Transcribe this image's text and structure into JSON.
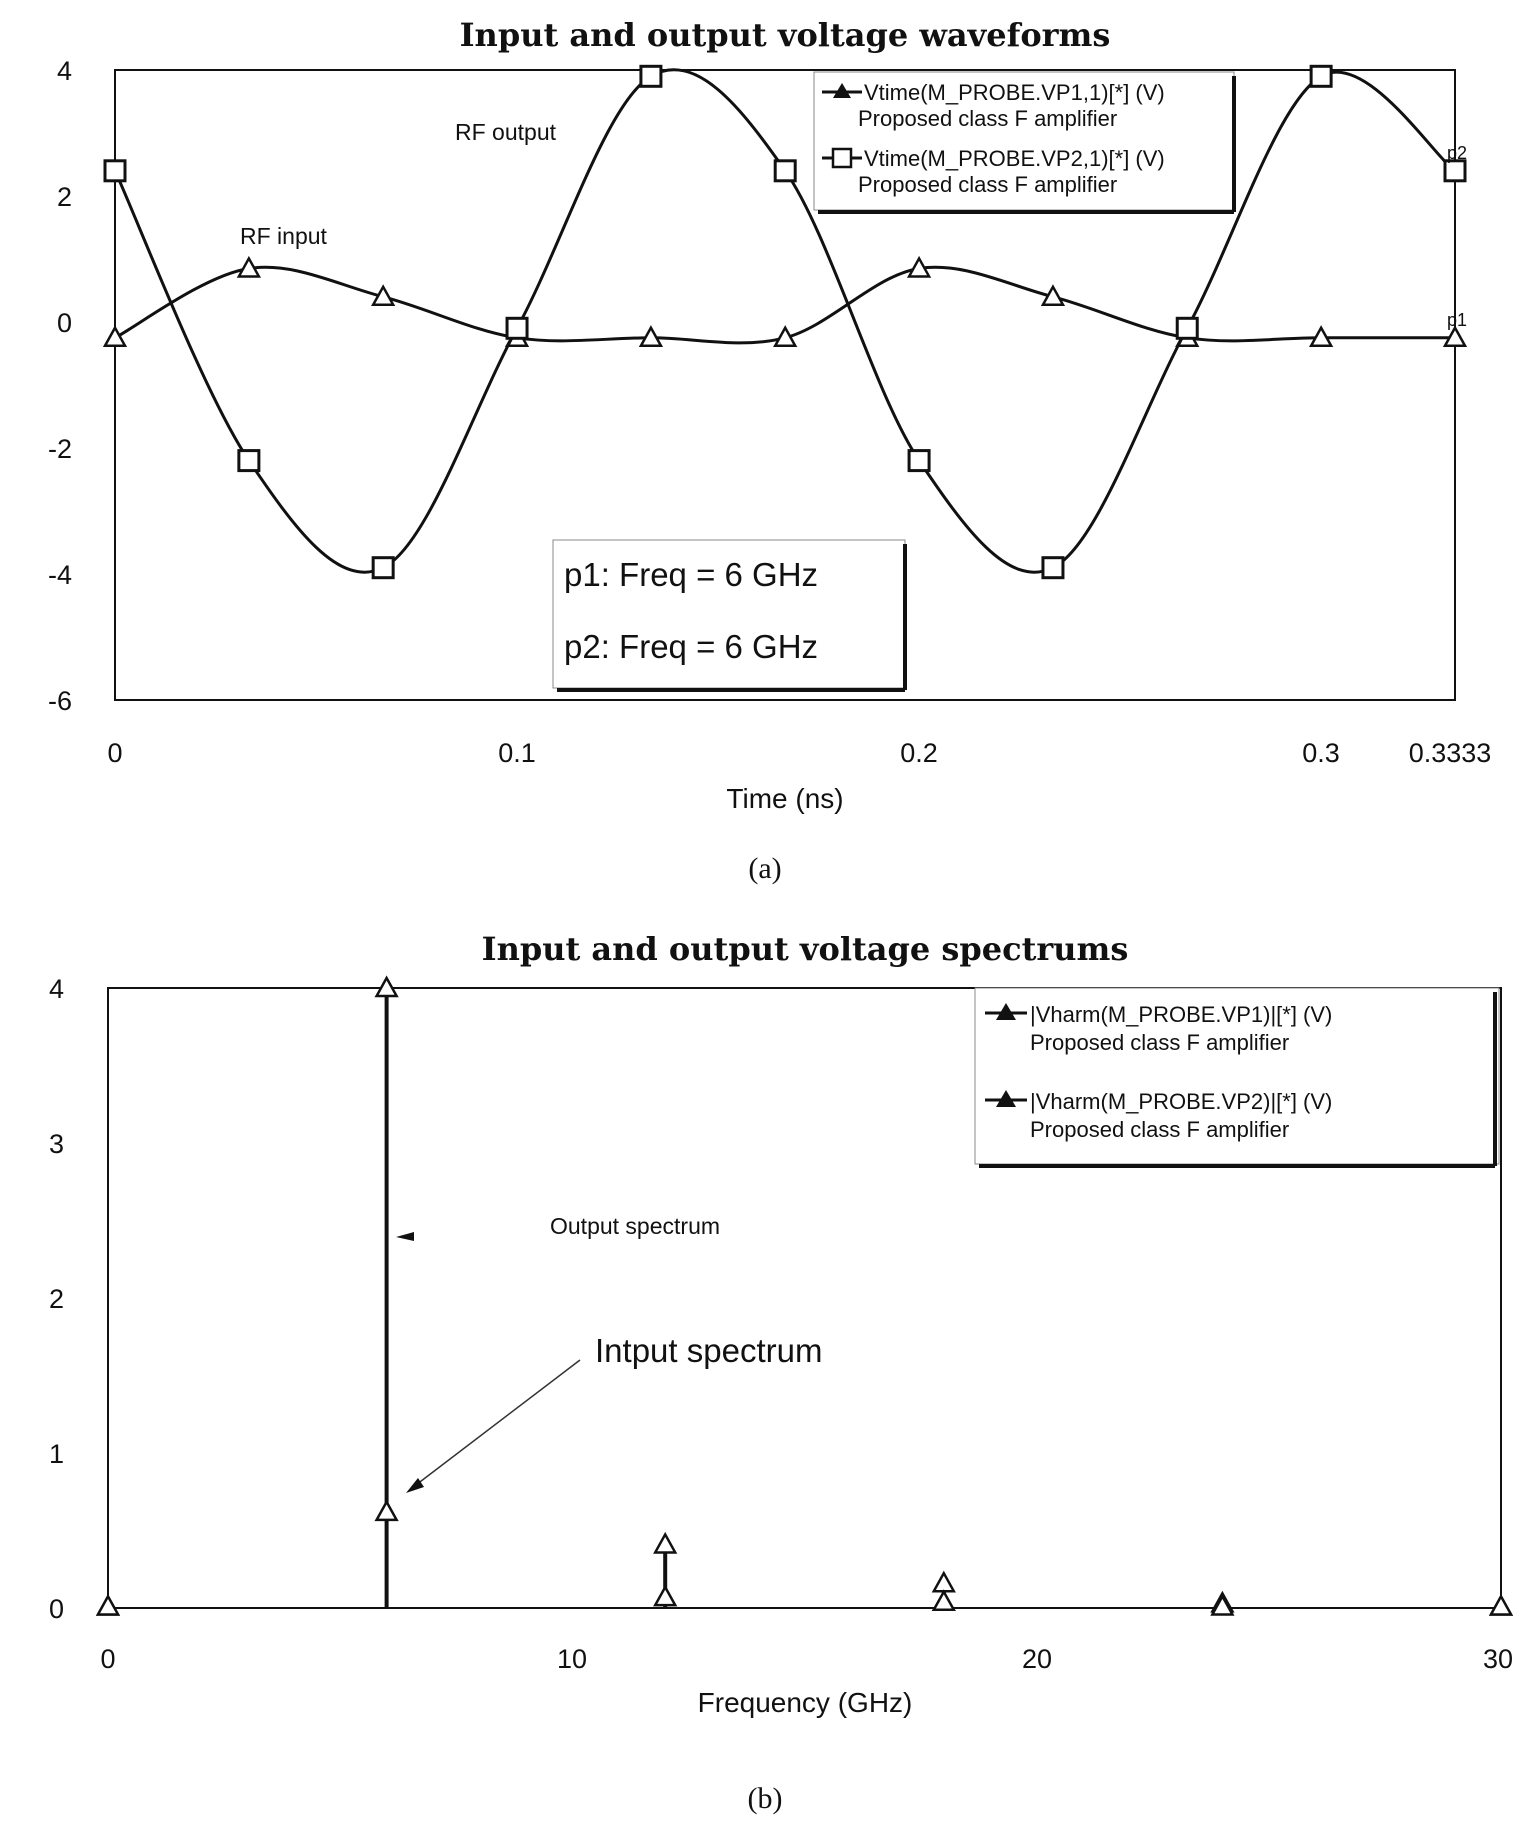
{
  "chart_data": [
    {
      "type": "line",
      "title": "Input and output voltage waveforms",
      "xlabel": "Time (ns)",
      "ylabel": "",
      "xlim": [
        0,
        0.3333
      ],
      "ylim": [
        -6,
        4
      ],
      "x_ticks": [
        "0",
        "0.1",
        "0.2",
        "0.3",
        "0.3333"
      ],
      "y_ticks": [
        "4",
        "2",
        "0",
        "-2",
        "-4",
        "-6"
      ],
      "x": [
        0,
        0.0333,
        0.0667,
        0.1,
        0.1333,
        0.1667,
        0.2,
        0.2333,
        0.2667,
        0.3,
        0.3333
      ],
      "series": [
        {
          "name": "Vtime(M_PROBE.VP1,1)[*] (V)",
          "sub": "Proposed class F  amplifier",
          "marker": "triangle",
          "values": [
            -0.25,
            0.85,
            0.4,
            -0.25,
            -0.25,
            -0.25,
            0.85,
            0.4,
            -0.25,
            -0.25,
            -0.25
          ],
          "end_label": "p1"
        },
        {
          "name": "Vtime(M_PROBE.VP2,1)[*] (V)",
          "sub": "Proposed class F  amplifier",
          "marker": "square",
          "values": [
            2.4,
            -2.2,
            -3.9,
            -0.1,
            3.9,
            2.4,
            -2.2,
            -3.9,
            -0.1,
            3.9,
            2.4
          ],
          "end_label": "p2"
        }
      ],
      "annotations": [
        "RF output",
        "RF input"
      ],
      "marker_box": [
        "p1: Freq = 6 GHz",
        "p2: Freq = 6 GHz"
      ],
      "caption": "(a)"
    },
    {
      "type": "bar",
      "title": "Input and output voltage spectrums",
      "xlabel": "Frequency (GHz)",
      "ylabel": "",
      "xlim": [
        0,
        30
      ],
      "ylim": [
        0,
        4
      ],
      "x_ticks": [
        "0",
        "10",
        "20",
        "30"
      ],
      "y_ticks": [
        "4",
        "3",
        "2",
        "1",
        "0"
      ],
      "series": [
        {
          "name": "|Vharm(M_PROBE.VP1)|[*] (V)",
          "sub": "Proposed class F  amplifier",
          "x": [
            0,
            6,
            12,
            18,
            24,
            30
          ],
          "values": [
            0.01,
            0.62,
            0.07,
            0.04,
            0.01,
            0.01
          ]
        },
        {
          "name": "|Vharm(M_PROBE.VP2)|[*] (V)",
          "sub": "Proposed class F  amplifier",
          "x": [
            0,
            6,
            12,
            18,
            24,
            30
          ],
          "values": [
            0.01,
            4.0,
            0.41,
            0.16,
            0.03,
            0.01
          ]
        }
      ],
      "annotations": [
        "Output spectrum",
        "Intput spectrum"
      ],
      "caption": "(b)"
    }
  ]
}
